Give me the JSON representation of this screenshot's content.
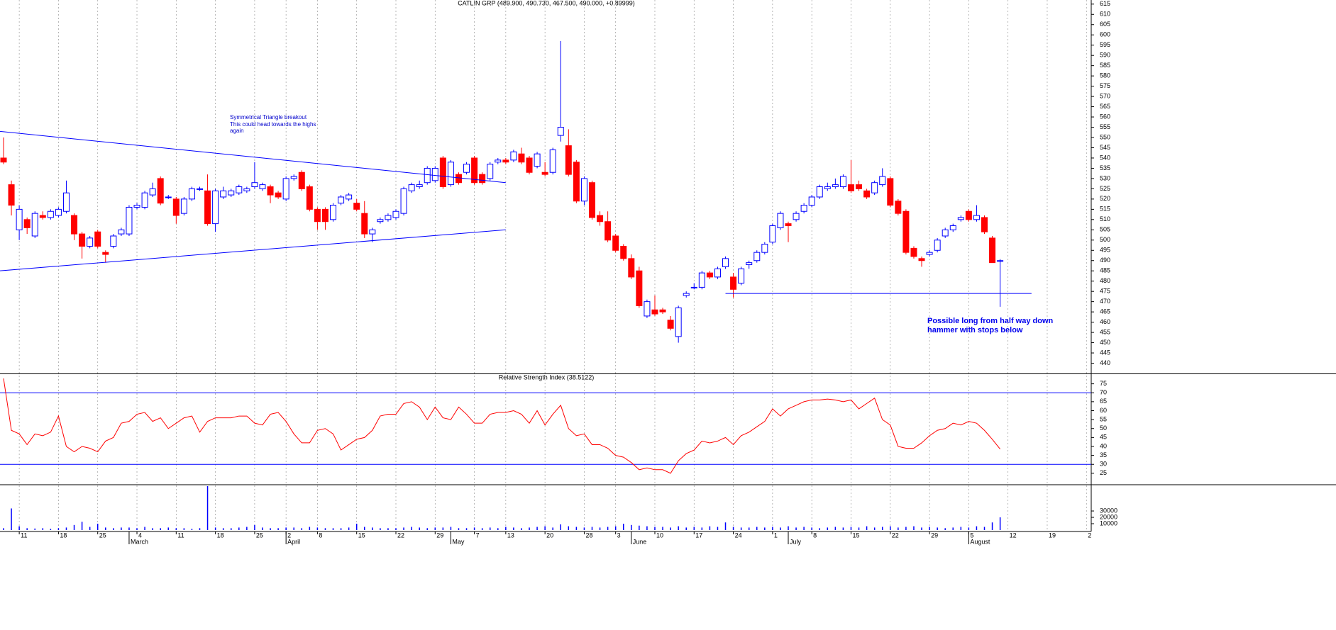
{
  "chart_data": [
    {
      "type": "candlestick",
      "title": "CATLIN GRP (489.900, 490.730, 467.500, 490.000, +0.89999)",
      "open": [
        540,
        527,
        505,
        510,
        502,
        512,
        511,
        512,
        514,
        512,
        503,
        497,
        504,
        494,
        497,
        503,
        503,
        516,
        516,
        522,
        530,
        521,
        520,
        513,
        520,
        525,
        524,
        508,
        521,
        522,
        523,
        524,
        526,
        525,
        526,
        523,
        520,
        530,
        533,
        526,
        515,
        515,
        510,
        518,
        520,
        518,
        513,
        503,
        509,
        510,
        511,
        513,
        524,
        526,
        528,
        529,
        540,
        527,
        532,
        533,
        540,
        532,
        530,
        538,
        539,
        539,
        542,
        540,
        536,
        533,
        533,
        551,
        546,
        538,
        519,
        528,
        512,
        509,
        502,
        497,
        491,
        485,
        463,
        466,
        466,
        461,
        453,
        473,
        477,
        477,
        484,
        482,
        487,
        482,
        479,
        488,
        490,
        494,
        499,
        506,
        508,
        510,
        514,
        517,
        521,
        525,
        526,
        526,
        527,
        527,
        524,
        523,
        527,
        530,
        519,
        514,
        496,
        491,
        493,
        495,
        502,
        505,
        510,
        514,
        510,
        511,
        501,
        489.9
      ],
      "high": [
        550,
        529,
        517,
        511,
        514,
        514,
        515,
        516,
        529,
        513,
        504,
        502,
        505,
        495,
        503,
        506,
        517,
        518,
        524,
        528,
        531,
        522,
        521,
        521,
        526,
        526,
        532,
        525,
        526,
        525,
        527,
        526,
        538,
        528,
        527,
        524,
        531,
        532,
        534,
        527,
        516,
        516,
        518,
        522,
        523,
        520,
        519,
        506,
        511,
        513,
        515,
        526,
        528,
        529,
        536,
        536,
        541,
        539,
        533,
        538,
        541,
        533,
        538,
        540,
        540,
        544,
        545,
        541,
        543,
        538,
        545,
        597,
        554,
        539,
        531,
        529,
        514,
        514,
        503,
        498,
        493,
        487,
        471,
        473,
        467,
        463,
        468,
        475,
        479,
        485,
        485,
        487,
        492,
        484,
        487,
        490,
        495,
        499,
        508,
        514,
        509,
        514,
        518,
        522,
        527,
        528,
        530,
        532,
        539,
        529,
        525,
        529,
        535,
        531,
        520,
        515,
        497,
        492,
        495,
        501,
        506,
        508,
        512,
        515,
        517,
        512,
        502,
        490.73
      ],
      "low": [
        537,
        512,
        500,
        503,
        501,
        510,
        510,
        511,
        513,
        500,
        491,
        496,
        496,
        489,
        496,
        502,
        502,
        515,
        515,
        521,
        517,
        520,
        508,
        512,
        519,
        524,
        507,
        504,
        520,
        521,
        522,
        523,
        525,
        524,
        518,
        520,
        519,
        529,
        524,
        514,
        505,
        505,
        509,
        517,
        519,
        514,
        501,
        499,
        508,
        509,
        510,
        512,
        523,
        525,
        527,
        528,
        525,
        526,
        527,
        532,
        527,
        527,
        529,
        537,
        537,
        538,
        537,
        532,
        535,
        531,
        532,
        548,
        531,
        518,
        517,
        510,
        507,
        499,
        494,
        490,
        481,
        467,
        462,
        463,
        464,
        456,
        450,
        472,
        476,
        476,
        481,
        481,
        486,
        472,
        478,
        486,
        489,
        493,
        498,
        505,
        499,
        509,
        513,
        516,
        520,
        524,
        525,
        525,
        523,
        524,
        520,
        522,
        526,
        516,
        512,
        493,
        491,
        487,
        492,
        494,
        501,
        504,
        509,
        509,
        509,
        503,
        489,
        467.5
      ],
      "close": [
        538,
        517,
        515,
        506,
        513,
        511,
        514,
        515,
        523,
        503,
        497,
        501,
        497,
        493,
        502,
        505,
        516,
        517,
        523,
        525,
        518,
        521,
        512,
        520,
        525,
        525,
        508,
        524,
        524,
        524,
        526,
        525,
        528,
        527,
        522,
        521,
        530,
        531,
        525,
        515,
        509,
        509,
        517,
        521,
        522,
        515,
        503,
        505,
        510,
        512,
        514,
        525,
        527,
        527,
        535,
        535,
        526,
        538,
        528,
        537,
        528,
        528,
        537,
        539,
        538,
        543,
        538,
        533,
        542,
        532,
        544,
        555,
        532,
        519,
        530,
        511,
        509,
        500,
        495,
        491,
        482,
        468,
        470,
        464,
        465,
        457,
        467,
        474,
        477,
        484,
        482,
        486,
        491,
        476,
        486,
        489,
        494,
        498,
        507,
        513,
        507,
        513,
        517,
        521,
        526,
        526,
        527,
        531,
        524,
        525,
        521,
        528,
        531,
        517,
        513,
        494,
        492,
        490,
        494,
        500,
        505,
        507,
        511,
        510,
        512,
        504,
        489,
        490.0
      ],
      "up_color": "#ffffff",
      "down_color": "#ff0000",
      "edge_color": "#0000ff",
      "ylim": [
        435,
        617
      ],
      "yticks": [
        440,
        445,
        450,
        455,
        460,
        465,
        470,
        475,
        480,
        485,
        490,
        495,
        500,
        505,
        510,
        515,
        520,
        525,
        530,
        535,
        540,
        545,
        550,
        555,
        560,
        565,
        570,
        575,
        580,
        585,
        590,
        595,
        600,
        605,
        610,
        615
      ],
      "grid": true,
      "trendline_color": "#0000ff",
      "trendlines": [
        {
          "from": [
            -0.5,
            553
          ],
          "to": [
            64,
            528
          ]
        },
        {
          "from": [
            -0.5,
            485
          ],
          "to": [
            64,
            505
          ]
        },
        {
          "from": [
            92,
            474
          ],
          "to": [
            131,
            474
          ]
        }
      ],
      "annotations": [
        [
          "Symmetrical Triangle breakout",
          "This could head towards the highs",
          "again"
        ],
        [
          "Possible long from half way down",
          "hammer with stops below"
        ]
      ]
    },
    {
      "type": "line",
      "title": "Relative Strength Index (38.5122)",
      "color": "#ff0000",
      "values": [
        78,
        49,
        47,
        41,
        47,
        46,
        48,
        57,
        40,
        37,
        40,
        39,
        37,
        43,
        45,
        53,
        54,
        58,
        59,
        54,
        56,
        50,
        53,
        56,
        57,
        48,
        54,
        56,
        56,
        56,
        57,
        57,
        53,
        52,
        58,
        59,
        54,
        47,
        42,
        42,
        49,
        50,
        47,
        38,
        41,
        44,
        45,
        49,
        57,
        58,
        58,
        64,
        65,
        62,
        55,
        62,
        56,
        55,
        62,
        58,
        53,
        53,
        58,
        59,
        59,
        60,
        58,
        53,
        60,
        52,
        58,
        63,
        50,
        46,
        47,
        41,
        41,
        39,
        35,
        34,
        31,
        27,
        28,
        27,
        27,
        25,
        32,
        36,
        38,
        43,
        42,
        43,
        45,
        41,
        46,
        48,
        51,
        54,
        61,
        57,
        61,
        63,
        65,
        66,
        66,
        66.5,
        66,
        65,
        66,
        61,
        64,
        67,
        55,
        52,
        40,
        39,
        39,
        42,
        46,
        49,
        50,
        53,
        52,
        54,
        53,
        49,
        44,
        38.5122
      ],
      "ylim": [
        19,
        80
      ],
      "yticks": [
        25,
        30,
        35,
        40,
        45,
        50,
        55,
        60,
        65,
        70,
        75
      ],
      "reference_lines": [
        30,
        70
      ],
      "reference_color": "#0000ff"
    },
    {
      "type": "bar",
      "color": "#0000ff",
      "values": [
        3000,
        34000,
        6000,
        3000,
        2500,
        3000,
        2000,
        3000,
        4000,
        8000,
        13000,
        5000,
        10000,
        4000,
        3000,
        4000,
        4000,
        3000,
        5000,
        3000,
        3000,
        4000,
        3000,
        3000,
        2000,
        3000,
        69000,
        4000,
        3000,
        3000,
        4000,
        5000,
        8000,
        4000,
        3000,
        3000,
        4000,
        4000,
        3000,
        5000,
        4000,
        3000,
        3000,
        3000,
        4000,
        10000,
        5000,
        4000,
        3000,
        3000,
        3000,
        4000,
        5000,
        4000,
        3000,
        4000,
        4000,
        5000,
        3000,
        3000,
        4000,
        3000,
        4000,
        3000,
        5000,
        4000,
        3000,
        4000,
        5000,
        6000,
        4000,
        9000,
        6000,
        5000,
        4000,
        5000,
        4000,
        5000,
        6000,
        10000,
        8000,
        7000,
        6000,
        5000,
        5000,
        4000,
        6000,
        4000,
        5000,
        4000,
        6000,
        5000,
        12000,
        5000,
        4000,
        4000,
        5000,
        4000,
        5000,
        4000,
        6000,
        4000,
        5000,
        4000,
        3000,
        4000,
        5000,
        4000,
        5000,
        4000,
        6000,
        4000,
        5000,
        6000,
        4000,
        5000,
        6000,
        4000,
        5000,
        4000,
        3000,
        4000,
        5000,
        4000,
        6000,
        5000,
        12000,
        20000
      ],
      "categories": [
        null,
        null,
        "11",
        null,
        null,
        null,
        null,
        "18",
        null,
        null,
        null,
        null,
        "25",
        null,
        null,
        null,
        null,
        "4",
        null,
        null,
        null,
        null,
        "11",
        null,
        null,
        null,
        null,
        "18",
        null,
        null,
        null,
        null,
        "25",
        null,
        null,
        null,
        "2",
        null,
        null,
        null,
        "8",
        null,
        null,
        null,
        null,
        "15",
        null,
        null,
        null,
        null,
        "22",
        null,
        null,
        null,
        null,
        "29",
        null,
        null,
        null,
        null,
        "7",
        null,
        null,
        null,
        "13",
        null,
        null,
        null,
        null,
        "20",
        null,
        null,
        null,
        null,
        "28",
        null,
        null,
        null,
        "3",
        null,
        null,
        null,
        null,
        "10",
        null,
        null,
        null,
        null,
        "17",
        null,
        null,
        null,
        null,
        "24",
        null,
        null,
        null,
        null,
        "1",
        null,
        null,
        null,
        null,
        "8",
        null,
        null,
        null,
        null,
        "15",
        null,
        null,
        null,
        null,
        "22",
        null,
        null,
        null,
        null,
        "29",
        null,
        null,
        null,
        null,
        "5",
        null,
        null,
        null,
        null
      ],
      "month_labels": [
        null,
        null,
        null,
        null,
        null,
        null,
        null,
        null,
        null,
        null,
        null,
        null,
        null,
        null,
        null,
        null,
        "March",
        null,
        null,
        null,
        null,
        null,
        null,
        null,
        null,
        null,
        null,
        null,
        null,
        null,
        null,
        null,
        null,
        null,
        null,
        null,
        "April",
        null,
        null,
        null,
        null,
        null,
        null,
        null,
        null,
        null,
        null,
        null,
        null,
        null,
        null,
        null,
        null,
        null,
        null,
        null,
        null,
        "May",
        null,
        null,
        null,
        null,
        null,
        null,
        null,
        null,
        null,
        null,
        null,
        null,
        null,
        null,
        null,
        null,
        null,
        null,
        null,
        null,
        null,
        null,
        "June",
        null,
        null,
        null,
        null,
        null,
        null,
        null,
        null,
        null,
        null,
        null,
        null,
        null,
        null,
        null,
        null,
        null,
        null,
        null,
        "July",
        null,
        null,
        null,
        null,
        null,
        null,
        null,
        null,
        null,
        null,
        null,
        null,
        null,
        null,
        null,
        null,
        null,
        null,
        null,
        null,
        null,
        null,
        "August",
        null,
        null,
        null,
        null,
        null,
        null
      ],
      "extra_x_labels": [
        "12",
        "19",
        "2"
      ],
      "ylim": [
        0,
        69000
      ],
      "yticks": [
        10000,
        20000,
        30000
      ]
    }
  ]
}
